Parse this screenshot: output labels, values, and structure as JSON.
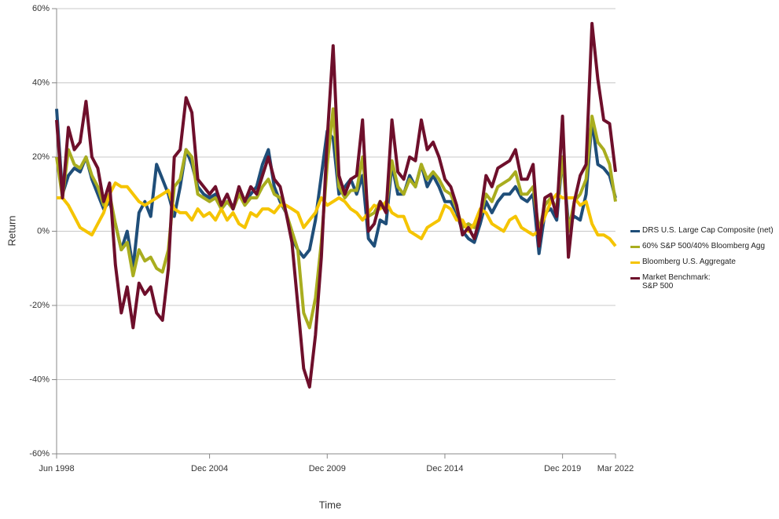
{
  "chart_data": {
    "type": "line",
    "x_label": "Time",
    "y_label": "Return",
    "x": [
      "Jun 1998",
      "Sep 1998",
      "Dec 1998",
      "Mar 1999",
      "Jun 1999",
      "Sep 1999",
      "Dec 1999",
      "Mar 2000",
      "Jun 2000",
      "Sep 2000",
      "Dec 2000",
      "Mar 2001",
      "Jun 2001",
      "Sep 2001",
      "Dec 2001",
      "Mar 2002",
      "Jun 2002",
      "Sep 2002",
      "Dec 2002",
      "Mar 2003",
      "Jun 2003",
      "Sep 2003",
      "Dec 2003",
      "Mar 2004",
      "Jun 2004",
      "Sep 2004",
      "Dec 2004",
      "Mar 2005",
      "Jun 2005",
      "Sep 2005",
      "Dec 2005",
      "Mar 2006",
      "Jun 2006",
      "Sep 2006",
      "Dec 2006",
      "Mar 2007",
      "Jun 2007",
      "Sep 2007",
      "Dec 2007",
      "Mar 2008",
      "Jun 2008",
      "Sep 2008",
      "Dec 2008",
      "Mar 2009",
      "Jun 2009",
      "Sep 2009",
      "Dec 2009",
      "Mar 2010",
      "Jun 2010",
      "Sep 2010",
      "Dec 2010",
      "Mar 2011",
      "Jun 2011",
      "Sep 2011",
      "Dec 2011",
      "Mar 2012",
      "Jun 2012",
      "Sep 2012",
      "Dec 2012",
      "Mar 2013",
      "Jun 2013",
      "Sep 2013",
      "Dec 2013",
      "Mar 2014",
      "Jun 2014",
      "Sep 2014",
      "Dec 2014",
      "Mar 2015",
      "Jun 2015",
      "Sep 2015",
      "Dec 2015",
      "Mar 2016",
      "Jun 2016",
      "Sep 2016",
      "Dec 2016",
      "Mar 2017",
      "Jun 2017",
      "Sep 2017",
      "Dec 2017",
      "Mar 2018",
      "Jun 2018",
      "Sep 2018",
      "Dec 2018",
      "Mar 2019",
      "Jun 2019",
      "Sep 2019",
      "Dec 2019",
      "Mar 2020",
      "Jun 2020",
      "Sep 2020",
      "Dec 2020",
      "Mar 2021",
      "Jun 2021",
      "Sep 2021",
      "Dec 2021",
      "Mar 2022"
    ],
    "xlim": [
      "Jun 1998",
      "Mar 2022"
    ],
    "xticks": [
      "Jun 1998",
      "Dec 2004",
      "Dec 2009",
      "Dec 2014",
      "Dec 2019",
      "Mar 2022"
    ],
    "ylim": [
      -60,
      60
    ],
    "yticks": [
      {
        "value": -60,
        "label": "-60%"
      },
      {
        "value": -40,
        "label": "-40%"
      },
      {
        "value": -20,
        "label": "-20%"
      },
      {
        "value": 0,
        "label": "0%"
      },
      {
        "value": 20,
        "label": "20%"
      },
      {
        "value": 40,
        "label": "40%"
      },
      {
        "value": 60,
        "label": "60%"
      }
    ],
    "grid": true,
    "legend": "right",
    "series": [
      {
        "name": "DRS U.S. Large Cap Composite (net)",
        "color": "#1f4e79",
        "values": [
          33,
          10,
          15,
          17,
          16,
          20,
          14,
          10,
          6,
          8,
          2,
          -5,
          0,
          -10,
          5,
          8,
          4,
          18,
          14,
          10,
          4,
          12,
          22,
          18,
          12,
          10,
          9,
          10,
          6,
          8,
          6,
          10,
          8,
          10,
          12,
          18,
          22,
          12,
          8,
          5,
          -2,
          -5,
          -7,
          -5,
          3,
          15,
          27,
          25,
          10,
          12,
          14,
          10,
          15,
          -2,
          -4,
          3,
          2,
          18,
          10,
          10,
          15,
          12,
          18,
          12,
          15,
          12,
          8,
          8,
          5,
          0,
          -2,
          -3,
          2,
          8,
          5,
          8,
          10,
          10,
          12,
          9,
          8,
          10,
          -6,
          5,
          6,
          3,
          20,
          2,
          4,
          3,
          10,
          30,
          18,
          17,
          15,
          9
        ]
      },
      {
        "name": "60% S&P 500/40% Bloomberg Agg",
        "color": "#a9ad1f",
        "values": [
          20,
          9,
          22,
          18,
          17,
          20,
          15,
          12,
          7,
          10,
          2,
          -5,
          -3,
          -12,
          -5,
          -8,
          -7,
          -10,
          -11,
          -5,
          12,
          14,
          22,
          20,
          10,
          9,
          8,
          9,
          6,
          8,
          6,
          10,
          7,
          9,
          9,
          12,
          14,
          10,
          9,
          5,
          0,
          -5,
          -22,
          -26,
          -18,
          -3,
          18,
          33,
          12,
          9,
          11,
          11,
          20,
          4,
          5,
          8,
          6,
          19,
          12,
          10,
          14,
          12,
          18,
          14,
          16,
          14,
          11,
          10,
          6,
          1,
          2,
          1,
          4,
          10,
          8,
          12,
          13,
          14,
          16,
          10,
          10,
          12,
          0,
          7,
          9,
          6,
          20,
          0,
          8,
          10,
          14,
          31,
          24,
          22,
          18,
          8
        ]
      },
      {
        "name": "Bloomberg U.S. Aggregate",
        "color": "#f5c400",
        "values": [
          9,
          9,
          7,
          4,
          1,
          0,
          -1,
          2,
          5,
          10,
          13,
          12,
          12,
          10,
          8,
          7,
          8,
          9,
          10,
          11,
          6,
          5,
          5,
          3,
          6,
          4,
          5,
          3,
          6,
          3,
          5,
          2,
          1,
          5,
          4,
          6,
          6,
          5,
          7,
          7,
          6,
          5,
          1,
          3,
          5,
          9,
          7,
          8,
          9,
          8,
          6,
          5,
          3,
          5,
          7,
          6,
          8,
          5,
          4,
          4,
          0,
          -1,
          -2,
          1,
          2,
          3,
          7,
          6,
          3,
          3,
          0,
          2,
          6,
          5,
          2,
          1,
          0,
          3,
          4,
          1,
          0,
          -1,
          0,
          4,
          8,
          10,
          9,
          9,
          9,
          7,
          8,
          2,
          -1,
          -1,
          -2,
          -4
        ]
      },
      {
        "name": "Market Benchmark:\nS&P 500",
        "color": "#6e0f2b",
        "values": [
          30,
          9,
          28,
          22,
          24,
          35,
          20,
          17,
          8,
          13,
          -9,
          -22,
          -15,
          -26,
          -14,
          -17,
          -15,
          -22,
          -24,
          -10,
          20,
          22,
          36,
          32,
          14,
          12,
          10,
          12,
          7,
          10,
          6,
          12,
          8,
          12,
          10,
          15,
          20,
          14,
          12,
          5,
          -3,
          -20,
          -37,
          -42,
          -28,
          -7,
          25,
          50,
          15,
          10,
          14,
          15,
          30,
          0,
          2,
          8,
          5,
          30,
          16,
          14,
          20,
          19,
          30,
          22,
          24,
          20,
          14,
          12,
          7,
          -1,
          1,
          -2,
          4,
          15,
          12,
          17,
          18,
          19,
          22,
          14,
          14,
          18,
          -4,
          9,
          10,
          4,
          31,
          -7,
          8,
          15,
          18,
          56,
          41,
          30,
          29,
          16
        ]
      }
    ]
  }
}
